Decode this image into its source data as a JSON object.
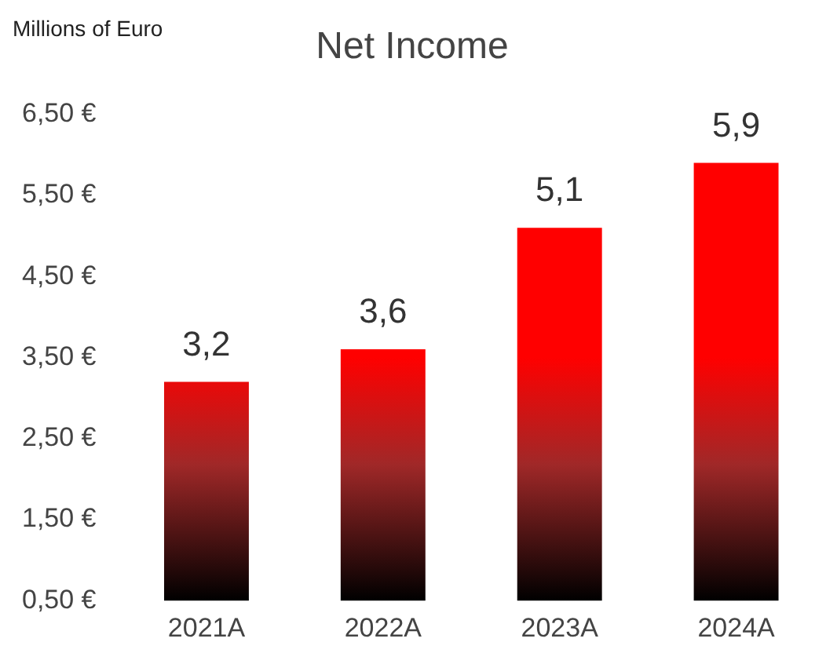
{
  "chart_data": {
    "type": "bar",
    "title": "Net Income",
    "ylabel": "Millions of Euro",
    "categories": [
      "2021A",
      "2022A",
      "2023A",
      "2024A"
    ],
    "values": [
      3.2,
      3.6,
      5.1,
      5.9
    ],
    "value_labels": [
      "3,2",
      "3,6",
      "5,1",
      "5,9"
    ],
    "color": "#ff0000",
    "ylim": [
      0.5,
      6.5
    ],
    "yticks": [
      {
        "value": 0.5,
        "label": "0,50 €"
      },
      {
        "value": 1.5,
        "label": "1,50 €"
      },
      {
        "value": 2.5,
        "label": "2,50 €"
      },
      {
        "value": 3.5,
        "label": "3,50 €"
      },
      {
        "value": 4.5,
        "label": "4,50 €"
      },
      {
        "value": 5.5,
        "label": "5,50 €"
      },
      {
        "value": 6.5,
        "label": "6,50 €"
      }
    ],
    "grid": false,
    "legend": false
  }
}
